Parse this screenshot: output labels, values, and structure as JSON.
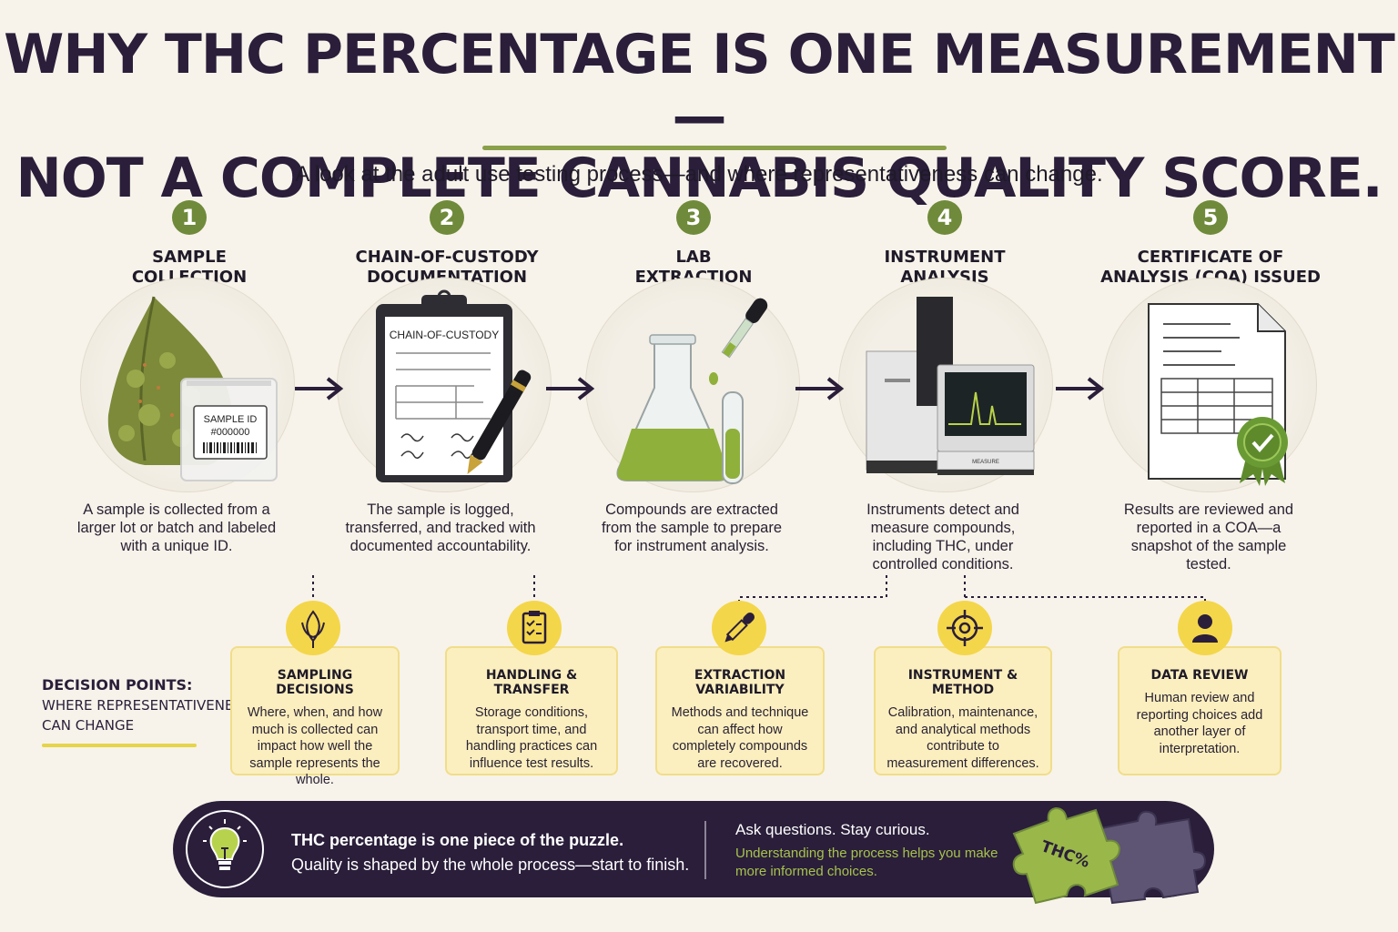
{
  "header": {
    "title_line1": "WHY THC PERCENTAGE IS ONE MEASUREMENT—",
    "title_line2": "NOT A COMPLETE CANNABIS QUALITY SCORE.",
    "subtitle": "A look at the adult use testing process—and where representativeness can change."
  },
  "steps": [
    {
      "number": "1",
      "title_line1": "SAMPLE",
      "title_line2": "COLLECTION",
      "description": "A sample is collected from a larger lot or batch and labeled with a unique ID.",
      "icon": "cannabis-bud-sample-bag-icon"
    },
    {
      "number": "2",
      "title_line1": "CHAIN-OF-CUSTODY",
      "title_line2": "DOCUMENTATION",
      "description": "The sample is logged, transferred, and tracked with documented accountability.",
      "icon": "clipboard-pen-icon"
    },
    {
      "number": "3",
      "title_line1": "LAB",
      "title_line2": "EXTRACTION",
      "description": "Compounds are extracted from the sample to prepare for instrument analysis.",
      "icon": "flask-dropper-icon"
    },
    {
      "number": "4",
      "title_line1": "INSTRUMENT",
      "title_line2": "ANALYSIS",
      "description": "Instruments detect and measure compounds, including THC, under controlled conditions.",
      "icon": "lab-instrument-icon"
    },
    {
      "number": "5",
      "title_line1": "CERTIFICATE OF",
      "title_line2": "ANALYSIS (COA) ISSUED",
      "description": "Results are reviewed and reported in a COA—a snapshot of the sample tested.",
      "icon": "certificate-seal-icon"
    }
  ],
  "illustration_text": {
    "bag_label_line1": "SAMPLE ID",
    "bag_label_line2": "#000000",
    "clipboard_heading": "CHAIN-OF-CUSTODY",
    "instrument_brand": "MEASURE"
  },
  "decision_points_label": {
    "line1": "DECISION POINTS:",
    "line2": "WHERE REPRESENTATIVENESS",
    "line3": "CAN CHANGE"
  },
  "decision_points": [
    {
      "title": "SAMPLING DECISIONS",
      "text": "Where, when, and how much is collected can impact how well the sample represents the whole.",
      "icon": "cannabis-leaf-icon"
    },
    {
      "title": "HANDLING & TRANSFER",
      "text": "Storage conditions, transport time, and handling practices can influence test results.",
      "icon": "clipboard-checklist-icon"
    },
    {
      "title": "EXTRACTION VARIABILITY",
      "text": "Methods and technique can affect how completely compounds are recovered.",
      "icon": "dropper-icon"
    },
    {
      "title": "INSTRUMENT & METHOD",
      "text": "Calibration, maintenance, and analytical methods contribute to measurement differences.",
      "icon": "crosshair-target-icon"
    },
    {
      "title": "DATA REVIEW",
      "text": "Human review and reporting choices add another layer of interpretation.",
      "icon": "person-icon"
    }
  ],
  "footer": {
    "main_line1": "THC percentage is one piece of the puzzle.",
    "main_line2": "Quality is shaped by the whole process—start to finish.",
    "side_line1": "Ask questions. Stay curious.",
    "side_line2": "Understanding the process helps you make more informed choices.",
    "puzzle_label": "THC%",
    "icons": [
      "lightbulb-icon",
      "puzzle-pieces-icon"
    ]
  },
  "colors": {
    "background": "#f7f3ea",
    "dark_purple": "#2a1e3a",
    "step_green": "#6f8a3a",
    "accent_lime": "#a6c24d",
    "decision_yellow": "#f4d64a",
    "decision_box": "#fbefbf"
  }
}
